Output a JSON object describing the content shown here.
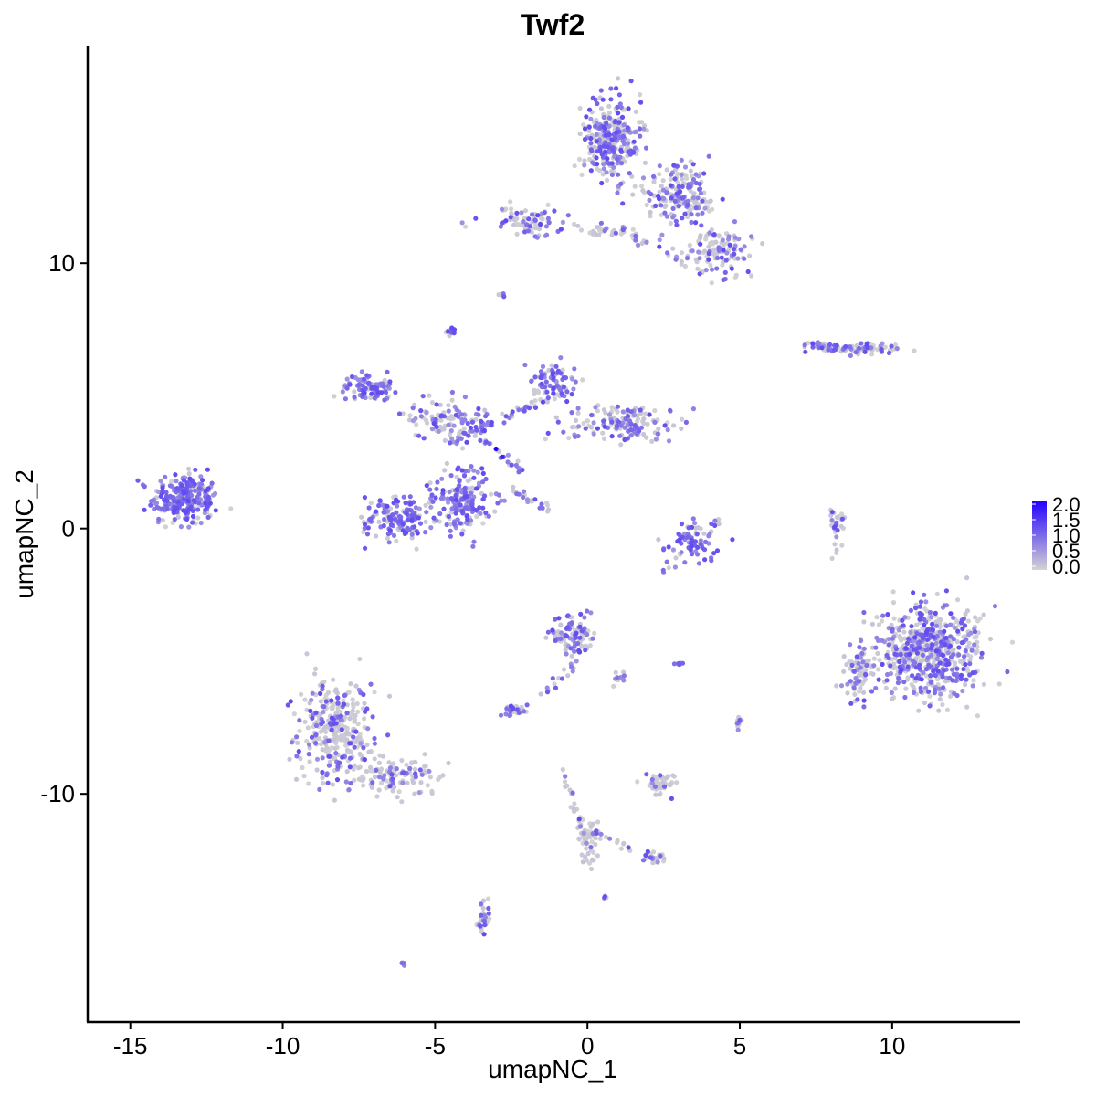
{
  "chart_data": {
    "type": "scatter",
    "title": "Twf2",
    "xlabel": "umapNC_1",
    "ylabel": "umapNC_2",
    "xlim": [
      -16.4,
      14.2
    ],
    "ylim": [
      -18.6,
      18.2
    ],
    "x_ticks": [
      -15,
      -10,
      -5,
      0,
      5,
      10
    ],
    "x_tick_labels": [
      "-15",
      "-10",
      "-5",
      "0",
      "5",
      "10"
    ],
    "y_ticks": [
      -10,
      0,
      10
    ],
    "y_tick_labels": [
      "-10",
      "0",
      "10"
    ],
    "color_scale": {
      "low": "#d3d3d3",
      "high": "#2200ff",
      "min": 0.0,
      "max": 2.0
    },
    "legend": {
      "placement": "right",
      "labels": [
        "2.0",
        "1.5",
        "1.0",
        "0.5",
        "0.0"
      ],
      "values": [
        2.0,
        1.5,
        1.0,
        0.5,
        0.0
      ]
    },
    "grid": false,
    "clusters": [
      {
        "center": [
          -13.2,
          1.1
        ],
        "spread": [
          0.9,
          0.8
        ],
        "n": 260,
        "expr_frac": 0.7
      },
      {
        "center": [
          -8.3,
          -7.6
        ],
        "spread": [
          1.0,
          1.6
        ],
        "n": 330,
        "expr_frac": 0.25
      },
      {
        "center": [
          -6.3,
          -9.3
        ],
        "spread": [
          1.4,
          0.6
        ],
        "n": 120,
        "expr_frac": 0.2
      },
      {
        "center": [
          -6.2,
          0.4
        ],
        "spread": [
          0.9,
          0.8
        ],
        "n": 150,
        "expr_frac": 0.6
      },
      {
        "center": [
          -4.1,
          1.1
        ],
        "spread": [
          0.8,
          1.0
        ],
        "n": 180,
        "expr_frac": 0.75
      },
      {
        "center": [
          -7.2,
          5.3
        ],
        "spread": [
          0.7,
          0.4
        ],
        "n": 90,
        "expr_frac": 0.8
      },
      {
        "center": [
          -4.5,
          4.1
        ],
        "spread": [
          1.3,
          0.6
        ],
        "n": 110,
        "expr_frac": 0.6
      },
      {
        "center": [
          -1.2,
          5.5
        ],
        "spread": [
          0.7,
          0.6
        ],
        "n": 90,
        "expr_frac": 0.6
      },
      {
        "center": [
          1.2,
          4.0
        ],
        "spread": [
          1.6,
          0.6
        ],
        "n": 160,
        "expr_frac": 0.4
      },
      {
        "center": [
          -4.5,
          7.4
        ],
        "spread": [
          0.15,
          0.15
        ],
        "n": 12,
        "expr_frac": 0.5
      },
      {
        "center": [
          -2.8,
          8.8
        ],
        "spread": [
          0.1,
          0.1
        ],
        "n": 8,
        "expr_frac": 0.4
      },
      {
        "center": [
          0.8,
          14.6
        ],
        "spread": [
          0.8,
          1.3
        ],
        "n": 320,
        "expr_frac": 0.55
      },
      {
        "center": [
          3.0,
          12.5
        ],
        "spread": [
          0.9,
          0.9
        ],
        "n": 180,
        "expr_frac": 0.5
      },
      {
        "center": [
          4.3,
          10.5
        ],
        "spread": [
          1.0,
          0.7
        ],
        "n": 120,
        "expr_frac": 0.4
      },
      {
        "center": [
          -2.0,
          11.6
        ],
        "spread": [
          1.0,
          0.4
        ],
        "n": 80,
        "expr_frac": 0.35
      },
      {
        "center": [
          0.8,
          11.2
        ],
        "spread": [
          0.8,
          0.2
        ],
        "n": 30,
        "expr_frac": 0.3
      },
      {
        "center": [
          8.9,
          6.8
        ],
        "spread": [
          1.2,
          0.15
        ],
        "n": 80,
        "expr_frac": 0.55
      },
      {
        "center": [
          3.5,
          -0.5
        ],
        "spread": [
          0.8,
          0.6
        ],
        "n": 70,
        "expr_frac": 0.7
      },
      {
        "center": [
          8.2,
          0.2
        ],
        "spread": [
          0.2,
          0.8
        ],
        "n": 30,
        "expr_frac": 0.3
      },
      {
        "center": [
          11.2,
          -4.6
        ],
        "spread": [
          1.4,
          1.5
        ],
        "n": 600,
        "expr_frac": 0.45
      },
      {
        "center": [
          8.9,
          -5.5
        ],
        "spread": [
          0.4,
          1.0
        ],
        "n": 80,
        "expr_frac": 0.3
      },
      {
        "center": [
          -0.5,
          -4.1
        ],
        "spread": [
          0.6,
          0.6
        ],
        "n": 110,
        "expr_frac": 0.45
      },
      {
        "center": [
          -2.4,
          -6.8
        ],
        "spread": [
          0.3,
          0.2
        ],
        "n": 30,
        "expr_frac": 0.5
      },
      {
        "center": [
          2.4,
          -9.6
        ],
        "spread": [
          0.4,
          0.3
        ],
        "n": 50,
        "expr_frac": 0.15
      },
      {
        "center": [
          0.0,
          -11.7
        ],
        "spread": [
          0.4,
          0.8
        ],
        "n": 45,
        "expr_frac": 0.1
      },
      {
        "center": [
          2.2,
          -12.4
        ],
        "spread": [
          0.4,
          0.2
        ],
        "n": 20,
        "expr_frac": 0.3
      },
      {
        "center": [
          -3.4,
          -14.7
        ],
        "spread": [
          0.2,
          0.5
        ],
        "n": 30,
        "expr_frac": 0.3
      },
      {
        "center": [
          5.0,
          -7.3
        ],
        "spread": [
          0.1,
          0.2
        ],
        "n": 12,
        "expr_frac": 0.4
      },
      {
        "center": [
          3.0,
          -5.1
        ],
        "spread": [
          0.1,
          0.05
        ],
        "n": 8,
        "expr_frac": 0.8
      },
      {
        "center": [
          0.6,
          -13.9
        ],
        "spread": [
          0.06,
          0.06
        ],
        "n": 5,
        "expr_frac": 0.6
      },
      {
        "center": [
          -6.0,
          -16.4
        ],
        "spread": [
          0.06,
          0.06
        ],
        "n": 4,
        "expr_frac": 0.8
      }
    ],
    "segments": [
      {
        "from": [
          -4.5,
          3.3
        ],
        "to": [
          -1.8,
          4.6
        ],
        "n": 50,
        "expr_frac": 0.6
      },
      {
        "from": [
          -2.5,
          1.5
        ],
        "to": [
          -1.3,
          0.7
        ],
        "n": 20,
        "expr_frac": 0.5
      },
      {
        "from": [
          -3.5,
          3.4
        ],
        "to": [
          -2.1,
          2.1
        ],
        "n": 20,
        "expr_frac": 0.5
      },
      {
        "from": [
          -0.3,
          -5.1
        ],
        "to": [
          -1.5,
          -6.2
        ],
        "n": 15,
        "expr_frac": 0.5
      },
      {
        "from": [
          1.2,
          -5.2
        ],
        "to": [
          1.0,
          -5.9
        ],
        "n": 10,
        "expr_frac": 0.3
      },
      {
        "from": [
          -0.8,
          -9.2
        ],
        "to": [
          0.0,
          -12.0
        ],
        "n": 25,
        "expr_frac": 0.1
      },
      {
        "from": [
          0.2,
          -11.5
        ],
        "to": [
          2.2,
          -12.4
        ],
        "n": 20,
        "expr_frac": 0.2
      },
      {
        "from": [
          1.3,
          11.1
        ],
        "to": [
          3.2,
          10.0
        ],
        "n": 20,
        "expr_frac": 0.5
      },
      {
        "from": [
          7.1,
          7.0
        ],
        "to": [
          8.0,
          6.8
        ],
        "n": 15,
        "expr_frac": 0.5
      },
      {
        "from": [
          2.5,
          -1.6
        ],
        "to": [
          4.4,
          0.3
        ],
        "n": 15,
        "expr_frac": 0.6
      }
    ],
    "highlight_points": [
      {
        "x": -3.0,
        "y": 3.0,
        "value": 2.0
      },
      {
        "x": -2.8,
        "y": 2.7,
        "value": 1.7
      }
    ]
  }
}
